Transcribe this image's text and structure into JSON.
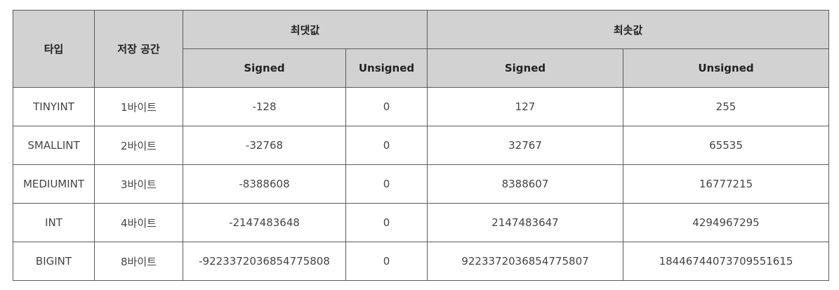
{
  "table": {
    "headers": {
      "type": "타입",
      "storage": "저장 공간",
      "max_group": "최댓값",
      "min_group": "최솟값",
      "max_signed": "Signed",
      "max_unsigned": "Unsigned",
      "min_signed": "Signed",
      "min_unsigned": "Unsigned"
    },
    "rows": [
      {
        "type": "TINYINT",
        "storage": "1바이트",
        "max_signed": "-128",
        "max_unsigned": "0",
        "min_signed": "127",
        "min_unsigned": "255"
      },
      {
        "type": "SMALLINT",
        "storage": "2바이트",
        "max_signed": "-32768",
        "max_unsigned": "0",
        "min_signed": "32767",
        "min_unsigned": "65535"
      },
      {
        "type": "MEDIUMINT",
        "storage": "3바이트",
        "max_signed": "-8388608",
        "max_unsigned": "0",
        "min_signed": "8388607",
        "min_unsigned": "16777215"
      },
      {
        "type": "INT",
        "storage": "4바이트",
        "max_signed": "-2147483648",
        "max_unsigned": "0",
        "min_signed": "2147483647",
        "min_unsigned": "4294967295"
      },
      {
        "type": "BIGINT",
        "storage": "8바이트",
        "max_signed": "-9223372036854775808",
        "max_unsigned": "0",
        "min_signed": "9223372036854775807",
        "min_unsigned": "18446744073709551615"
      }
    ]
  }
}
